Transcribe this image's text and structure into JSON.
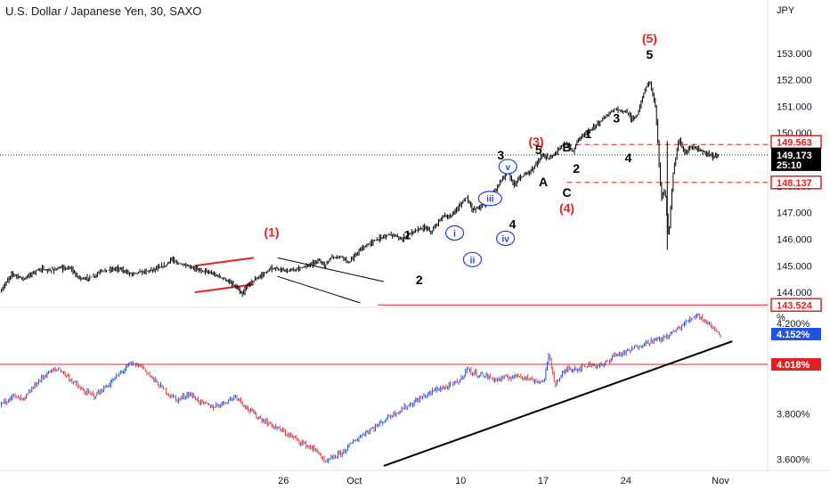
{
  "header": {
    "title": "U.S. Dollar / Japanese Yen, 30, SAXO",
    "currency": "JPY",
    "percent_unit": "%"
  },
  "colors": {
    "red": "#e51f1f",
    "blue": "#1f3fe0",
    "black": "#000000",
    "bar_up": "#1e53e5",
    "bar_down": "#e53935",
    "axis_text": "#131722"
  },
  "price_axis": {
    "ticks": [
      "153.000",
      "152.000",
      "151.000",
      "150.000",
      "149.000",
      "148.000",
      "147.000",
      "146.000",
      "145.000",
      "144.000"
    ],
    "tags": [
      {
        "label": "149.563",
        "style": "red-outline"
      },
      {
        "label": "149.173",
        "sub": "25:10",
        "style": "black-fill"
      },
      {
        "label": "148.137",
        "style": "red-outline"
      },
      {
        "label": "143.524",
        "style": "red-outline"
      }
    ]
  },
  "yield_axis": {
    "ticks": [
      "4.200%",
      "3.800%",
      "3.600%"
    ],
    "tags": [
      {
        "label": "4.152%",
        "style": "blue-fill"
      },
      {
        "label": "4.018%",
        "style": "red-fill"
      }
    ]
  },
  "time_axis": {
    "ticks": [
      "26",
      "Oct",
      "10",
      "17",
      "24",
      "Nov"
    ]
  },
  "chart_data": [
    {
      "type": "line",
      "title": "U.S. Dollar / Japanese Yen, 30, SAXO",
      "ylabel": "JPY",
      "ylim": [
        143.6,
        154.0
      ],
      "x_domain": [
        -29,
        36
      ],
      "x_tick_values": [
        -5,
        1,
        10,
        17,
        24,
        32
      ],
      "y_ticks": [
        144,
        145,
        146,
        147,
        148,
        149,
        150,
        151,
        152,
        153
      ],
      "series": [
        {
          "values": [
            [
              -29.0,
              144.0
            ],
            [
              -28.0,
              144.7
            ],
            [
              -27.0,
              144.5
            ],
            [
              -26.0,
              144.8
            ],
            [
              -25.5,
              144.9
            ],
            [
              -25.0,
              144.8
            ],
            [
              -24.0,
              144.9
            ],
            [
              -23.0,
              144.9
            ],
            [
              -22.5,
              144.6
            ],
            [
              -22.0,
              144.5
            ],
            [
              -21.0,
              144.6
            ],
            [
              -20.5,
              144.8
            ],
            [
              -19.0,
              144.9
            ],
            [
              -18.0,
              144.7
            ],
            [
              -16.5,
              144.8
            ],
            [
              -15.0,
              145.0
            ],
            [
              -14.5,
              145.25
            ],
            [
              -14.0,
              145.1
            ],
            [
              -12.5,
              144.9
            ],
            [
              -11.0,
              144.7
            ],
            [
              -10.0,
              144.5
            ],
            [
              -9.0,
              144.2
            ],
            [
              -8.5,
              143.9
            ],
            [
              -8.0,
              144.3
            ],
            [
              -7.0,
              144.6
            ],
            [
              -6.0,
              144.9
            ],
            [
              -4.5,
              144.8
            ],
            [
              -3.0,
              145.0
            ],
            [
              -2.0,
              145.2
            ],
            [
              -1.5,
              145.0
            ],
            [
              -1.0,
              145.3
            ],
            [
              0.0,
              145.35
            ],
            [
              0.5,
              145.1
            ],
            [
              1.5,
              145.6
            ],
            [
              2.5,
              145.9
            ],
            [
              3.0,
              146.0
            ],
            [
              4.0,
              146.2
            ],
            [
              5.0,
              146.0
            ],
            [
              6.0,
              146.3
            ],
            [
              7.0,
              146.45
            ],
            [
              7.5,
              146.25
            ],
            [
              8.5,
              146.9
            ],
            [
              9.0,
              146.8
            ],
            [
              10.0,
              147.3
            ],
            [
              10.5,
              147.6
            ],
            [
              11.0,
              147.1
            ],
            [
              12.0,
              147.3
            ],
            [
              13.0,
              147.9
            ],
            [
              14.0,
              148.6
            ],
            [
              14.5,
              148.0
            ],
            [
              15.0,
              148.3
            ],
            [
              16.0,
              148.6
            ],
            [
              17.0,
              149.2
            ],
            [
              17.5,
              149.0
            ],
            [
              18.5,
              149.5
            ],
            [
              19.0,
              149.6
            ],
            [
              19.5,
              149.3
            ],
            [
              20.0,
              149.8
            ],
            [
              21.0,
              150.1
            ],
            [
              22.0,
              150.5
            ],
            [
              23.0,
              150.9
            ],
            [
              24.0,
              150.8
            ],
            [
              24.5,
              150.5
            ],
            [
              25.0,
              150.7
            ],
            [
              25.5,
              151.5
            ],
            [
              26.0,
              152.0
            ],
            [
              26.5,
              151.0
            ],
            [
              27.0,
              147.5
            ],
            [
              27.3,
              147.9
            ],
            [
              27.6,
              146.0
            ],
            [
              28.0,
              148.5
            ],
            [
              28.5,
              149.8
            ],
            [
              29.0,
              149.2
            ],
            [
              29.5,
              149.5
            ],
            [
              30.0,
              149.4
            ],
            [
              30.5,
              149.3
            ],
            [
              31.0,
              149.2
            ],
            [
              31.3,
              149.1
            ],
            [
              31.8,
              149.173
            ]
          ]
        }
      ]
    },
    {
      "type": "line",
      "ylabel": "%",
      "ylim": [
        3.55,
        4.27
      ],
      "x_domain": [
        -29,
        36
      ],
      "y_ticks": [
        4.2,
        3.8,
        3.6
      ],
      "series": [
        {
          "values": [
            [
              -29.0,
              3.84
            ],
            [
              -28.0,
              3.88
            ],
            [
              -27.0,
              3.86
            ],
            [
              -26.0,
              3.93
            ],
            [
              -25.0,
              3.98
            ],
            [
              -24.0,
              4.0
            ],
            [
              -23.0,
              3.95
            ],
            [
              -22.0,
              3.9
            ],
            [
              -21.0,
              3.88
            ],
            [
              -20.0,
              3.92
            ],
            [
              -19.0,
              3.97
            ],
            [
              -18.0,
              4.02
            ],
            [
              -17.0,
              4.01
            ],
            [
              -16.0,
              3.95
            ],
            [
              -15.0,
              3.9
            ],
            [
              -14.0,
              3.86
            ],
            [
              -13.0,
              3.89
            ],
            [
              -12.0,
              3.85
            ],
            [
              -11.0,
              3.83
            ],
            [
              -10.0,
              3.85
            ],
            [
              -9.0,
              3.88
            ],
            [
              -8.0,
              3.82
            ],
            [
              -7.0,
              3.78
            ],
            [
              -6.0,
              3.75
            ],
            [
              -5.0,
              3.72
            ],
            [
              -4.0,
              3.69
            ],
            [
              -3.0,
              3.66
            ],
            [
              -2.0,
              3.63
            ],
            [
              -1.5,
              3.58
            ],
            [
              -1.0,
              3.6
            ],
            [
              0.0,
              3.63
            ],
            [
              1.0,
              3.68
            ],
            [
              2.0,
              3.72
            ],
            [
              3.0,
              3.75
            ],
            [
              4.0,
              3.79
            ],
            [
              5.0,
              3.82
            ],
            [
              6.0,
              3.85
            ],
            [
              7.0,
              3.88
            ],
            [
              8.0,
              3.91
            ],
            [
              9.0,
              3.92
            ],
            [
              10.0,
              3.95
            ],
            [
              10.5,
              4.0
            ],
            [
              11.0,
              3.98
            ],
            [
              12.0,
              3.97
            ],
            [
              13.0,
              3.95
            ],
            [
              14.0,
              3.96
            ],
            [
              15.0,
              3.97
            ],
            [
              16.0,
              3.95
            ],
            [
              17.0,
              3.94
            ],
            [
              17.5,
              4.06
            ],
            [
              18.0,
              3.93
            ],
            [
              19.0,
              4.0
            ],
            [
              20.0,
              4.0
            ],
            [
              21.0,
              4.02
            ],
            [
              22.0,
              4.01
            ],
            [
              23.0,
              4.06
            ],
            [
              24.0,
              4.07
            ],
            [
              25.0,
              4.1
            ],
            [
              26.0,
              4.12
            ],
            [
              27.0,
              4.13
            ],
            [
              28.0,
              4.16
            ],
            [
              29.0,
              4.2
            ],
            [
              30.0,
              4.24
            ],
            [
              30.5,
              4.22
            ],
            [
              31.0,
              4.2
            ],
            [
              31.5,
              4.17
            ],
            [
              32.0,
              4.152
            ]
          ]
        }
      ]
    }
  ],
  "levels": [
    {
      "value": 149.563,
      "panel": "price",
      "style": "red-dashed"
    },
    {
      "value": 148.137,
      "panel": "price",
      "style": "red-dashed"
    },
    {
      "value": 149.173,
      "panel": "price",
      "style": "black-dotted"
    },
    {
      "value": 143.524,
      "panel": "price",
      "style": "red-solid"
    },
    {
      "value": 4.018,
      "panel": "yield",
      "style": "red-solid"
    }
  ],
  "trendlines": [
    {
      "panel": "yield",
      "from": [
        3.5,
        3.57
      ],
      "to": [
        33.0,
        4.12
      ],
      "color": "#000000"
    }
  ],
  "channel_lines": [
    {
      "panel": "price",
      "from": [
        -12.5,
        145.0
      ],
      "to": [
        -7.5,
        145.3
      ],
      "color": "#e51f1f"
    },
    {
      "panel": "price",
      "from": [
        -12.5,
        144.0
      ],
      "to": [
        -7.5,
        144.3
      ],
      "color": "#e51f1f"
    },
    {
      "panel": "price",
      "from": [
        -5.5,
        145.3
      ],
      "to": [
        3.5,
        144.4
      ],
      "color": "#000000"
    },
    {
      "panel": "price",
      "from": [
        -5.5,
        144.6
      ],
      "to": [
        1.5,
        143.6
      ],
      "color": "#000000"
    }
  ],
  "annotations": {
    "price": [
      {
        "text": "(1)",
        "x": -6.0,
        "y": 146.1,
        "color": "red"
      },
      {
        "text": "1",
        "x": 5.5,
        "y": 146.0,
        "color": "black"
      },
      {
        "text": "2",
        "x": 6.5,
        "y": 144.3,
        "color": "black"
      },
      {
        "text": "i",
        "x": 9.5,
        "y": 146.1,
        "color": "blue",
        "circle": true
      },
      {
        "text": "ii",
        "x": 11.0,
        "y": 145.1,
        "color": "blue",
        "circle": true
      },
      {
        "text": "iii",
        "x": 12.5,
        "y": 147.4,
        "color": "blue",
        "circle": true
      },
      {
        "text": "iv",
        "x": 13.8,
        "y": 145.9,
        "color": "blue",
        "circle": true
      },
      {
        "text": "v",
        "x": 14.0,
        "y": 148.6,
        "color": "blue",
        "circle": true
      },
      {
        "text": "3",
        "x": 13.4,
        "y": 149.0,
        "color": "black"
      },
      {
        "text": "4",
        "x": 14.4,
        "y": 146.4,
        "color": "black"
      },
      {
        "text": "(3)",
        "x": 16.4,
        "y": 149.5,
        "color": "red"
      },
      {
        "text": "5",
        "x": 16.6,
        "y": 149.2,
        "color": "black"
      },
      {
        "text": "A",
        "x": 17.0,
        "y": 148.0,
        "color": "black"
      },
      {
        "text": "B",
        "x": 19.0,
        "y": 149.3,
        "color": "black"
      },
      {
        "text": "C",
        "x": 19.0,
        "y": 147.6,
        "color": "black"
      },
      {
        "text": "(4)",
        "x": 19.0,
        "y": 147.0,
        "color": "red"
      },
      {
        "text": "2",
        "x": 19.8,
        "y": 148.5,
        "color": "black"
      },
      {
        "text": "1",
        "x": 20.8,
        "y": 149.8,
        "color": "black"
      },
      {
        "text": "3",
        "x": 23.2,
        "y": 150.4,
        "color": "black"
      },
      {
        "text": "4",
        "x": 24.2,
        "y": 148.9,
        "color": "black"
      },
      {
        "text": "(5)",
        "x": 26.0,
        "y": 153.4,
        "color": "red"
      },
      {
        "text": "5",
        "x": 26.0,
        "y": 152.8,
        "color": "black"
      }
    ]
  }
}
